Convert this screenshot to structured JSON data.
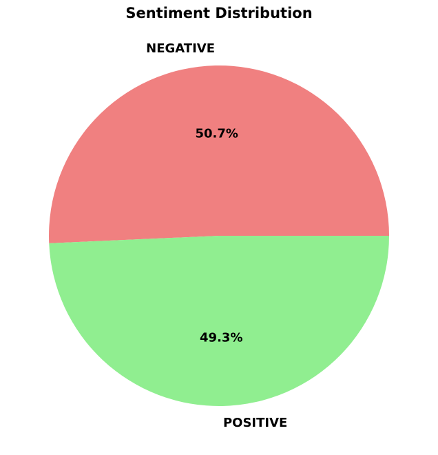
{
  "chart_data": {
    "type": "pie",
    "title": "Sentiment Distribution",
    "slices": [
      {
        "label": "NEGATIVE",
        "value": 50.7,
        "pct_label": "50.7%",
        "color": "#f08080"
      },
      {
        "label": "POSITIVE",
        "value": 49.3,
        "pct_label": "49.3%",
        "color": "#90ee90"
      }
    ],
    "start_angle_deg": 0,
    "direction": "counterclockwise"
  }
}
